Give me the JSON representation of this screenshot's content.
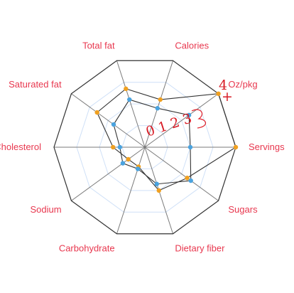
{
  "colors": {
    "outer": "#333333",
    "grid": "#cfe0f7",
    "spoke": "#7a7a7a",
    "series_a_line": "#333333",
    "series_a_point": "#f0a020",
    "series_b_line": "#333333",
    "series_b_point": "#4aa3df",
    "label": "#e8384f",
    "annotation": "#d81b25"
  },
  "annotations": {
    "digits": "0 1 2 3",
    "digit_4": "4",
    "plus": "+"
  },
  "chart_data": {
    "type": "radar",
    "axes": [
      "Calories",
      "Oz/pkg",
      "Servings",
      "Sugars",
      "Dietary fiber",
      "Carbohydrate",
      "Sodium",
      "Cholesterol",
      "Saturated fat",
      "Total fat"
    ],
    "rlim": [
      0,
      4
    ],
    "rings": 4,
    "grid": true,
    "series": [
      {
        "values": [
          2.2,
          4.0,
          4.0,
          2.3,
          2.0,
          0.9,
          0.9,
          1.4,
          2.6,
          2.7
        ]
      },
      {
        "values": [
          1.8,
          2.4,
          2.0,
          2.5,
          1.7,
          1.0,
          1.2,
          1.1,
          1.7,
          2.2
        ]
      }
    ]
  }
}
